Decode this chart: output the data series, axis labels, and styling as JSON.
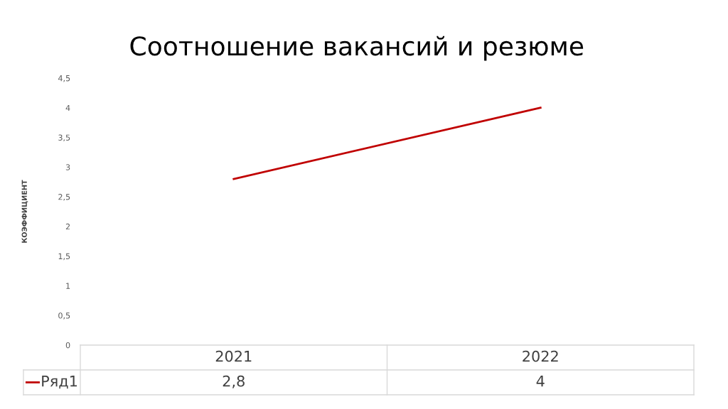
{
  "chart_data": {
    "type": "line",
    "title": "Соотношение вакансий и резюме",
    "ylabel": "КОЭФФИЦИЕНТ",
    "categories": [
      "2021",
      "2022"
    ],
    "series": [
      {
        "name": "Ряд1",
        "color": "#c00000",
        "values": [
          2.8,
          4
        ],
        "value_labels": [
          "2,8",
          "4"
        ]
      }
    ],
    "ylim": [
      0,
      4.5
    ],
    "yticks": [
      0,
      {
        "value": 0.5,
        "label": "0,5"
      },
      1,
      {
        "value": 1.5,
        "label": "1,5"
      },
      2,
      {
        "value": 2.5,
        "label": "2,5"
      },
      3,
      {
        "value": 3.5,
        "label": "3,5"
      },
      4,
      {
        "value": 4.5,
        "label": "4,5"
      }
    ],
    "grid": false,
    "legend": "bottom",
    "marker": "none",
    "line_style": "solid"
  }
}
